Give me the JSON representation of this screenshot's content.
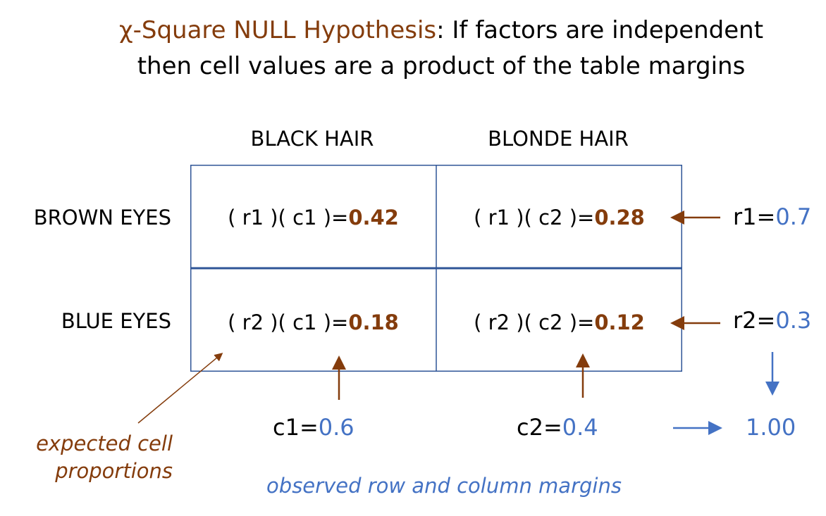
{
  "title": {
    "highlight": "χ-Square NULL Hypothesis",
    "rest_line1": ": If factors are independent",
    "line2": "then cell values are a product of the table margins"
  },
  "columns": [
    "BLACK HAIR",
    "BLONDE HAIR"
  ],
  "rows": [
    "BROWN EYES",
    "BLUE EYES"
  ],
  "cells": [
    [
      {
        "formula": "( r1 )( c1 )=",
        "value": "0.42"
      },
      {
        "formula": "( r1 )( c2 )=",
        "value": "0.28"
      }
    ],
    [
      {
        "formula": "( r2 )( c1 )=",
        "value": "0.18"
      },
      {
        "formula": "( r2 )( c2 )=",
        "value": "0.12"
      }
    ]
  ],
  "row_margins": [
    {
      "label": "r1=",
      "value": "0.7"
    },
    {
      "label": "r2=",
      "value": "0.3"
    }
  ],
  "col_margins": [
    {
      "label": "c1=",
      "value": "0.6"
    },
    {
      "label": "c2=",
      "value": "0.4"
    }
  ],
  "total": "1.00",
  "notes": {
    "expected_line1": "expected cell",
    "expected_line2": "proportions",
    "observed": "observed row and column margins"
  },
  "colors": {
    "brown": "#843C0C",
    "blue": "#4472C4",
    "border": "#2F5597"
  }
}
